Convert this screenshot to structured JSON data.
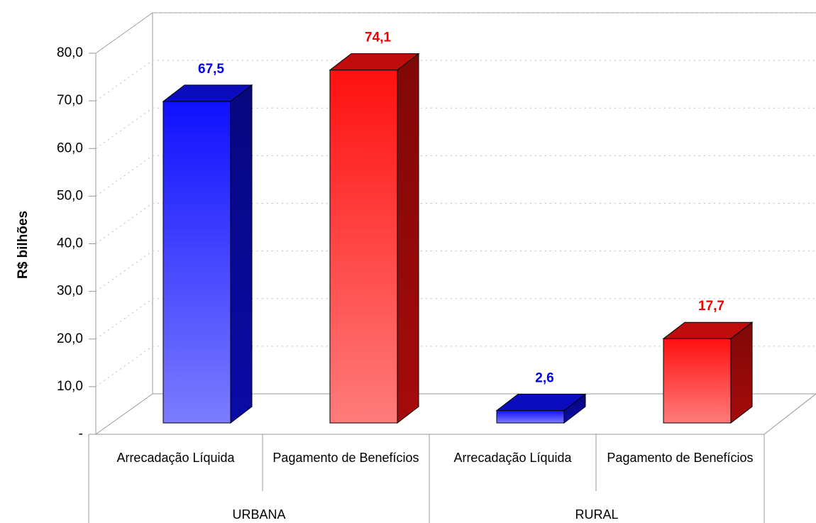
{
  "chart_data": {
    "type": "bar3d",
    "y_label": "R$ bilhões",
    "categories": [
      "Arrecadação Líquida",
      "Pagamento de Benefícios",
      "Arrecadação Líquida",
      "Pagamento de Benefícios"
    ],
    "groups": [
      "URBANA",
      "RURAL"
    ],
    "values": [
      67.5,
      74.1,
      2.6,
      17.7
    ],
    "value_labels": [
      "67,5",
      "74,1",
      "2,6",
      "17,7"
    ],
    "colors": [
      "#1010ff",
      "#ff1010",
      "#1010ff",
      "#ff1010"
    ],
    "ylim": [
      0,
      80
    ],
    "yticks": [
      {
        "value": 0,
        "label": "-"
      },
      {
        "value": 10,
        "label": "10,0"
      },
      {
        "value": 20,
        "label": "20,0"
      },
      {
        "value": 30,
        "label": "30,0"
      },
      {
        "value": 40,
        "label": "40,0"
      },
      {
        "value": 50,
        "label": "50,0"
      },
      {
        "value": 60,
        "label": "60,0"
      },
      {
        "value": 70,
        "label": "70,0"
      },
      {
        "value": 80,
        "label": "80,0"
      }
    ],
    "grid": true
  }
}
